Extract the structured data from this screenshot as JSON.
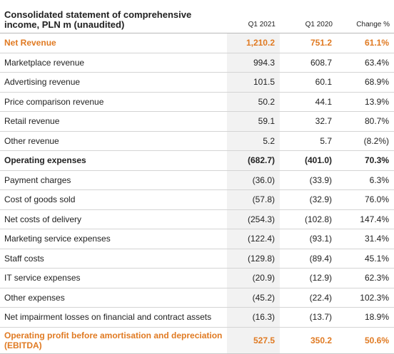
{
  "table": {
    "title": "Consolidated statement of comprehensive income, PLN m (unaudited)",
    "columns": [
      "Q1 2021",
      "Q1 2020",
      "Change %"
    ],
    "rows": [
      {
        "label": "Net Revenue",
        "q1_2021": "1,210.2",
        "q1_2020": "751.2",
        "change": "61.1%"
      },
      {
        "label": "Marketplace revenue",
        "q1_2021": "994.3",
        "q1_2020": "608.7",
        "change": "63.4%"
      },
      {
        "label": "Advertising revenue",
        "q1_2021": "101.5",
        "q1_2020": "60.1",
        "change": "68.9%"
      },
      {
        "label": "Price comparison revenue",
        "q1_2021": "50.2",
        "q1_2020": "44.1",
        "change": "13.9%"
      },
      {
        "label": "Retail revenue",
        "q1_2021": "59.1",
        "q1_2020": "32.7",
        "change": "80.7%"
      },
      {
        "label": "Other revenue",
        "q1_2021": "5.2",
        "q1_2020": "5.7",
        "change": "(8.2%)"
      },
      {
        "label": "Operating expenses",
        "q1_2021": "(682.7)",
        "q1_2020": "(401.0)",
        "change": "70.3%"
      },
      {
        "label": "Payment charges",
        "q1_2021": "(36.0)",
        "q1_2020": "(33.9)",
        "change": "6.3%"
      },
      {
        "label": "Cost of goods sold",
        "q1_2021": "(57.8)",
        "q1_2020": "(32.9)",
        "change": "76.0%"
      },
      {
        "label": "Net costs of delivery",
        "q1_2021": "(254.3)",
        "q1_2020": "(102.8)",
        "change": "147.4%"
      },
      {
        "label": "Marketing service expenses",
        "q1_2021": "(122.4)",
        "q1_2020": "(93.1)",
        "change": "31.4%"
      },
      {
        "label": "Staff costs",
        "q1_2021": "(129.8)",
        "q1_2020": "(89.4)",
        "change": "45.1%"
      },
      {
        "label": "IT service expenses",
        "q1_2021": "(20.9)",
        "q1_2020": "(12.9)",
        "change": "62.3%"
      },
      {
        "label": "Other expenses",
        "q1_2021": "(45.2)",
        "q1_2020": "(22.4)",
        "change": "102.3%"
      },
      {
        "label": "Net impairment losses on financial and contract assets",
        "q1_2021": "(16.3)",
        "q1_2020": "(13.7)",
        "change": "18.9%"
      },
      {
        "label": "Operating profit before amortisation and depreciation (EBITDA)",
        "q1_2021": "527.5",
        "q1_2020": "350.2",
        "change": "50.6%"
      }
    ]
  },
  "colors": {
    "highlight": "#e07a22",
    "shade": "#f2f2f2",
    "rule": "#d4d4d4"
  }
}
